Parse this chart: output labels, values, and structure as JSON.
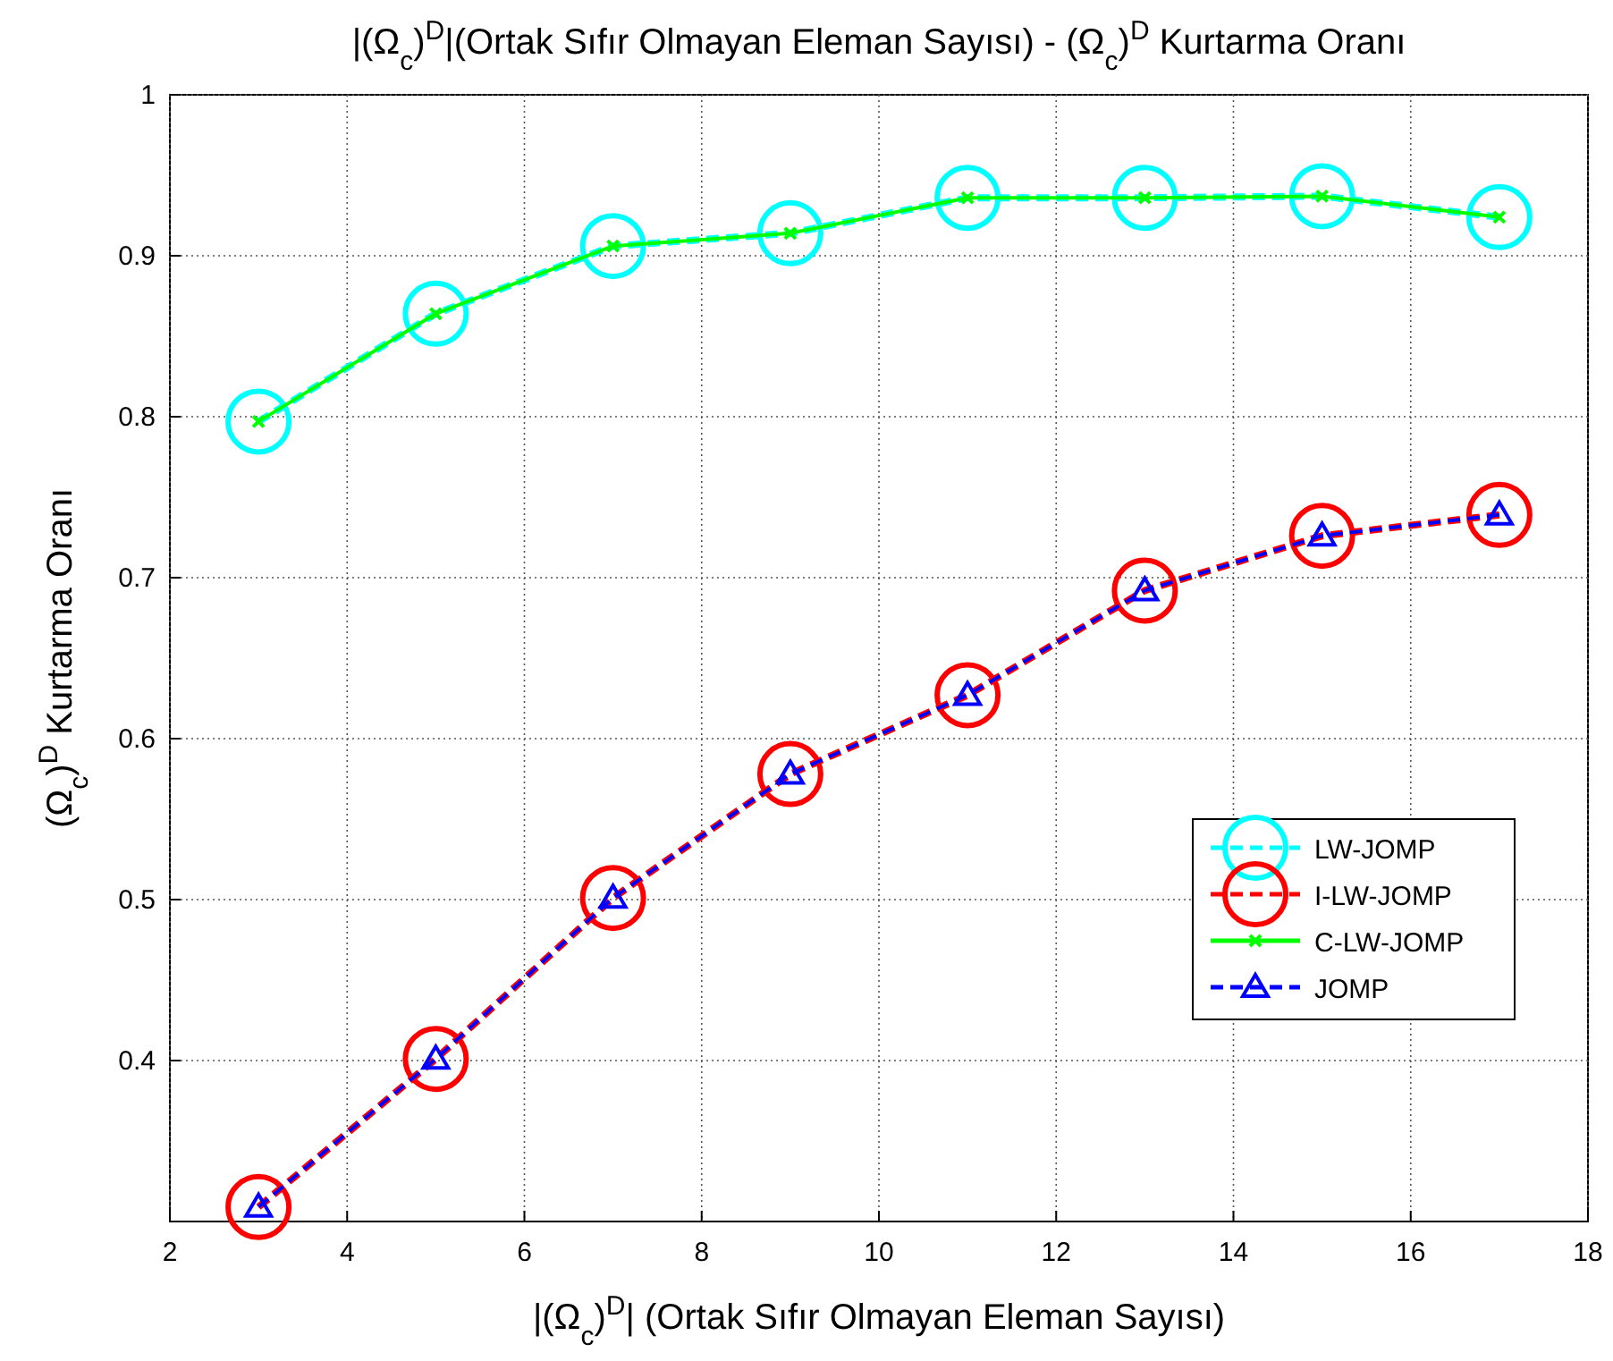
{
  "chart_data": {
    "type": "line",
    "title": "|(Ω$_{c}$)$^{D}$|(Ortak Sıfır Olmayan Eleman Sayısı) - (Ω$_{c}$)$^{D}$ Kurtarma Oranı",
    "xlabel": "|(Ω$_{c}$)$^{D}$| (Ortak Sıfır Olmayan Eleman Sayısı)",
    "ylabel": "(Ω$_{c}$)$^{D}$ Kurtarma Oranı",
    "x": [
      3,
      5,
      7,
      9,
      11,
      13,
      15,
      17
    ],
    "series": [
      {
        "name": "LW-JOMP",
        "color": "#00ffff",
        "marker": "circle",
        "line_style": "dashed",
        "values": [
          0.797,
          0.864,
          0.906,
          0.914,
          0.936,
          0.936,
          0.937,
          0.924
        ]
      },
      {
        "name": "I-LW-JOMP",
        "color": "#ff0000",
        "marker": "circle",
        "line_style": "dashed",
        "values": [
          0.309,
          0.401,
          0.501,
          0.578,
          0.627,
          0.692,
          0.726,
          0.739
        ]
      },
      {
        "name": "C-LW-JOMP",
        "color": "#00ff00",
        "marker": "cross",
        "line_style": "solid",
        "values": [
          0.797,
          0.864,
          0.906,
          0.914,
          0.936,
          0.936,
          0.937,
          0.924
        ]
      },
      {
        "name": "JOMP",
        "color": "#0000ff",
        "marker": "triangle",
        "line_style": "dashed",
        "values": [
          0.309,
          0.401,
          0.501,
          0.578,
          0.627,
          0.692,
          0.726,
          0.739
        ]
      }
    ],
    "xlim": [
      2,
      18
    ],
    "xticks": [
      2,
      4,
      6,
      8,
      10,
      12,
      14,
      16,
      18
    ],
    "ylim": [
      0.3,
      1
    ],
    "yticks": [
      0.4,
      0.5,
      0.6,
      0.7,
      0.8,
      0.9,
      1
    ],
    "grid": true,
    "legend": "right"
  }
}
